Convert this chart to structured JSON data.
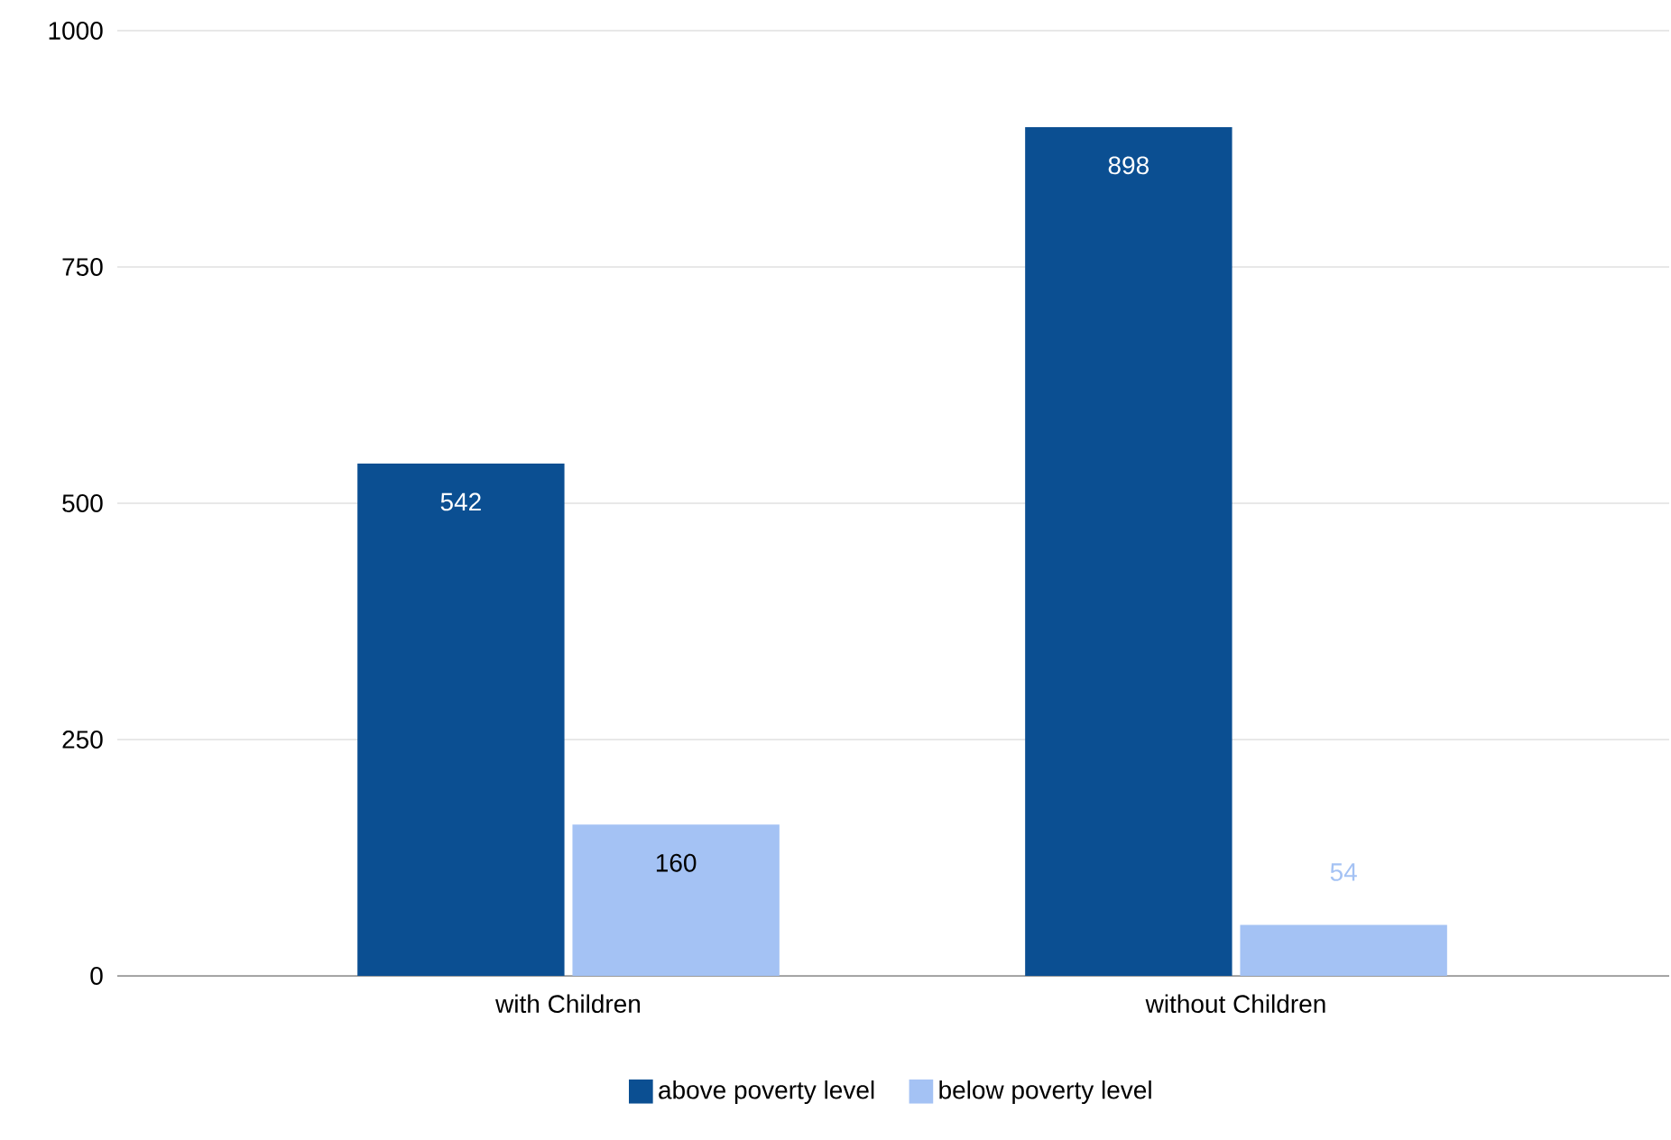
{
  "chart_data": {
    "type": "bar",
    "categories": [
      "with Children",
      "without Children"
    ],
    "series": [
      {
        "name": "above poverty level",
        "color": "#0b4f92",
        "values": [
          542,
          898
        ]
      },
      {
        "name": "below poverty level",
        "color": "#a4c2f4",
        "values": [
          160,
          54
        ]
      }
    ],
    "ylim": [
      0,
      1000
    ],
    "yticks": [
      0,
      250,
      500,
      750,
      1000
    ],
    "grid": "y",
    "legend": "bottom",
    "data_labels": true
  }
}
